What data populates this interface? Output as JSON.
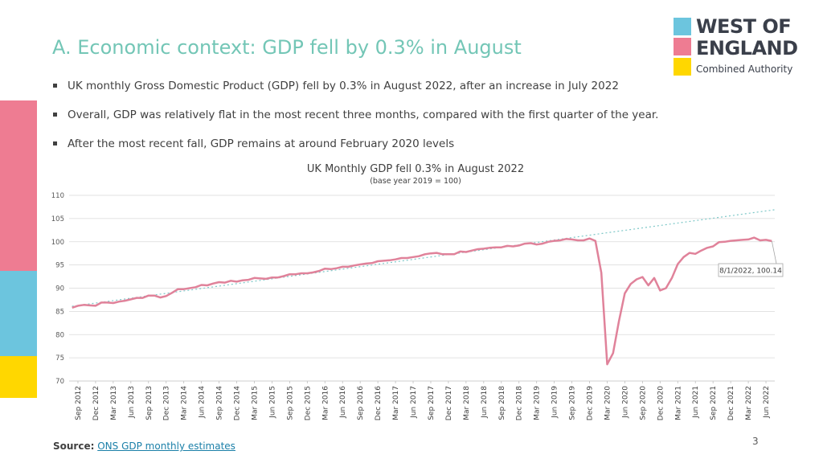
{
  "slide": {
    "title": "A. Economic context: GDP fell by 0.3% in August",
    "bullets": [
      "UK monthly Gross Domestic Product (GDP) fell by 0.3% in August 2022, after an increase in July 2022",
      "Overall, GDP was relatively flat in the most recent three months, compared with the first quarter of the year.",
      "After the most recent fall, GDP remains at around February 2020 levels"
    ],
    "source_label": "Source:",
    "source_link": "ONS GDP monthly estimates",
    "page_number": "3"
  },
  "logo": {
    "line1": "WEST OF",
    "line2": "ENGLAND",
    "line3": "Combined Authority",
    "colors": [
      "#6cc5de",
      "#ee7c92",
      "#ffd700"
    ]
  },
  "sidebar_colors": [
    "#ee7c92",
    "#6cc5de",
    "#ffd700"
  ],
  "chart_data": {
    "type": "line",
    "title": "UK Monthly GDP fell 0.3% in August 2022",
    "subtitle": "(base year 2019 = 100)",
    "ylim": [
      70,
      110
    ],
    "yticks": [
      70,
      75,
      80,
      85,
      90,
      95,
      100,
      105,
      110
    ],
    "grid": true,
    "line_color": "#e0829a",
    "trend_color": "#7ec8c8",
    "x_tick_labels": [
      "Sep 2012",
      "Dec 2012",
      "Mar 2013",
      "Jun 2013",
      "Sep 2013",
      "Dec 2013",
      "Mar 2014",
      "Jun 2014",
      "Sep 2014",
      "Dec 2014",
      "Mar 2015",
      "Jun 2015",
      "Sep 2015",
      "Dec 2015",
      "Mar 2016",
      "Jun 2016",
      "Sep 2016",
      "Dec 2016",
      "Mar 2017",
      "Jun 2017",
      "Sep 2017",
      "Dec 2017",
      "Mar 2018",
      "Jun 2018",
      "Sep 2018",
      "Dec 2018",
      "Mar 2019",
      "Jun 2019",
      "Sep 2019",
      "Dec 2019",
      "Mar 2020",
      "Jun 2020",
      "Sep 2020",
      "Dec 2020",
      "Mar 2021",
      "Jun 2021",
      "Sep 2021",
      "Dec 2021",
      "Mar 2022",
      "Jun 2022"
    ],
    "x_start": "2012-08",
    "series": [
      {
        "values": [
          85.8,
          86.2,
          86.4,
          86.3,
          86.2,
          86.9,
          86.9,
          86.8,
          87.1,
          87.3,
          87.6,
          87.9,
          87.9,
          88.4,
          88.4,
          88.0,
          88.3,
          89.0,
          89.8,
          89.8,
          90.0,
          90.2,
          90.7,
          90.6,
          91.0,
          91.3,
          91.2,
          91.6,
          91.4,
          91.7,
          91.8,
          92.2,
          92.1,
          92.0,
          92.3,
          92.3,
          92.6,
          93.0,
          93.0,
          93.2,
          93.2,
          93.4,
          93.7,
          94.2,
          94.1,
          94.3,
          94.6,
          94.6,
          94.9,
          95.1,
          95.3,
          95.4,
          95.8,
          95.9,
          96.0,
          96.2,
          96.5,
          96.5,
          96.7,
          96.9,
          97.3,
          97.5,
          97.6,
          97.3,
          97.3,
          97.3,
          97.9,
          97.8,
          98.1,
          98.4,
          98.5,
          98.7,
          98.8,
          98.8,
          99.1,
          99.0,
          99.2,
          99.6,
          99.7,
          99.4,
          99.6,
          100.0,
          100.2,
          100.3,
          100.6,
          100.5,
          100.3,
          100.3,
          100.7,
          100.2,
          93.3,
          73.6,
          76.0,
          82.9,
          88.9,
          90.9,
          91.9,
          92.4,
          90.6,
          92.2,
          89.5,
          90.0,
          92.2,
          95.2,
          96.7,
          97.6,
          97.4,
          98.1,
          98.7,
          99.0,
          99.9,
          100.0,
          100.2,
          100.3,
          100.4,
          100.5,
          100.9,
          100.3,
          100.4,
          100.14
        ]
      }
    ],
    "trendline": {
      "start_value": 86.1,
      "end_value": 106.9
    },
    "annotation": {
      "text": "8/1/2022, 100.14",
      "index": 119
    }
  }
}
